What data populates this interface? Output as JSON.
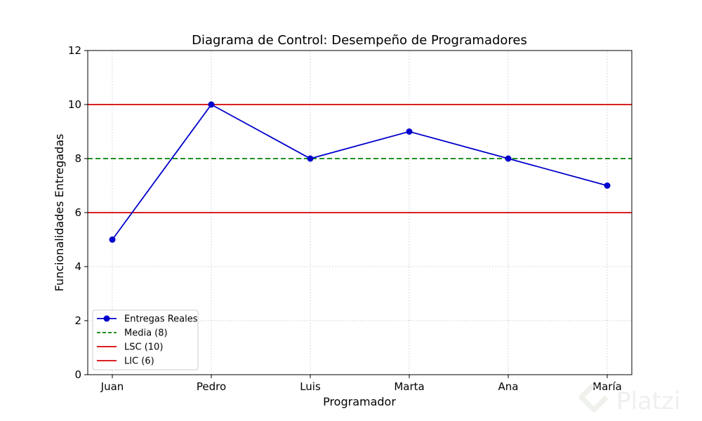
{
  "chart_data": {
    "type": "line",
    "title": "Diagrama de Control: Desempeño de Programadores",
    "xlabel": "Programador",
    "ylabel": "Funcionalidades Entregadas",
    "categories": [
      "Juan",
      "Pedro",
      "Luis",
      "Marta",
      "Ana",
      "María"
    ],
    "series": [
      {
        "name": "Entregas Reales",
        "values": [
          5,
          10,
          8,
          9,
          8,
          7
        ],
        "color": "#0000cc",
        "style": "solid",
        "marker": "circle"
      }
    ],
    "reference_lines": [
      {
        "name": "Media (8)",
        "value": 8,
        "color": "#008000",
        "style": "dashed"
      },
      {
        "name": "LSC (10)",
        "value": 10,
        "color": "#d40000",
        "style": "solid"
      },
      {
        "name": "LIC (6)",
        "value": 6,
        "color": "#d40000",
        "style": "solid"
      }
    ],
    "ylim": [
      0,
      12
    ],
    "yticks": [
      "0",
      "2",
      "4",
      "6",
      "8",
      "10",
      "12"
    ],
    "grid": true,
    "legend_position": "lower-left"
  },
  "watermark": {
    "text": "Platzi",
    "icon": "platzi-logo-icon"
  }
}
